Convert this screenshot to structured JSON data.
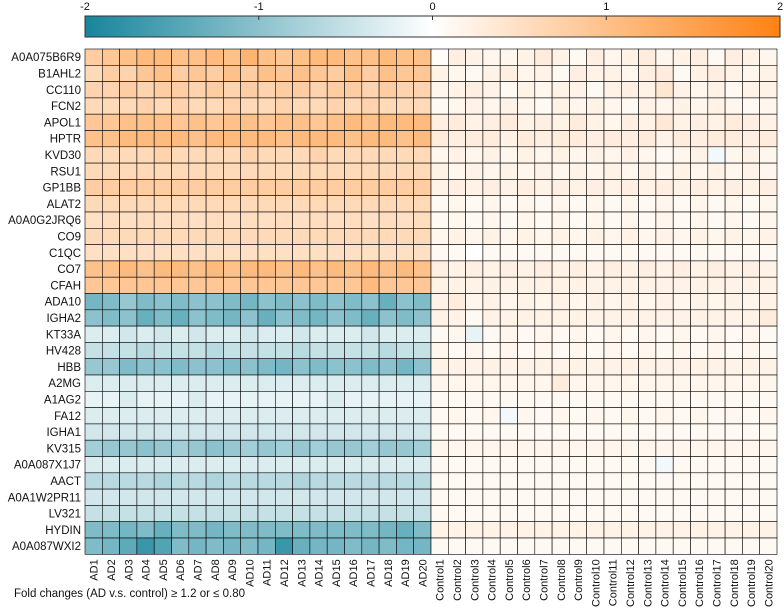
{
  "footnote": "Fold changes (AD v.s. control) ≥ 1.2 or ≤ 0.80",
  "chart_data": {
    "type": "heatmap",
    "colorbar": {
      "range": [
        -2,
        2
      ],
      "ticks": [
        -2,
        -1,
        0,
        1,
        2
      ],
      "tick_labels": [
        "-2",
        "-1",
        "0",
        "1",
        "2"
      ],
      "colors": {
        "low": "#17859b",
        "mid": "#ffffff",
        "high": "#ff8214"
      },
      "placement": "top"
    },
    "rows": [
      "A0A075B6R9",
      "B1AHL2",
      "CC110",
      "FCN2",
      "APOL1",
      "HPTR",
      "KVD30",
      "RSU1",
      "GP1BB",
      "ALAT2",
      "A0A0G2JRQ6",
      "CO9",
      "C1QC",
      "CO7",
      "CFAH",
      "ADA10",
      "IGHA2",
      "KT33A",
      "HV428",
      "HBB",
      "A2MG",
      "A1AG2",
      "FA12",
      "IGHA1",
      "KV315",
      "A0A087X1J7",
      "AACT",
      "A0A1W2PR11",
      "LV321",
      "HYDIN",
      "A0A087WXI2"
    ],
    "columns": [
      "AD1",
      "AD2",
      "AD3",
      "AD4",
      "AD5",
      "AD6",
      "AD7",
      "AD8",
      "AD9",
      "AD10",
      "AD11",
      "AD12",
      "AD13",
      "AD14",
      "AD15",
      "AD16",
      "AD17",
      "AD18",
      "AD19",
      "AD20",
      "Control1",
      "Control2",
      "Control3",
      "Control4",
      "Control5",
      "Control6",
      "Control7",
      "Control8",
      "Control9",
      "Control10",
      "Control11",
      "Control12",
      "Control13",
      "Control14",
      "Control15",
      "Control16",
      "Control17",
      "Control18",
      "Control19",
      "Control20"
    ],
    "values": [
      [
        0.8,
        0.9,
        1.0,
        1.1,
        1.1,
        1.0,
        1.0,
        1.1,
        1.0,
        1.2,
        1.0,
        0.9,
        1.0,
        1.1,
        1.1,
        1.0,
        1.0,
        1.1,
        1.0,
        1.0,
        0.05,
        0.25,
        0.2,
        0.15,
        0.15,
        0.2,
        0.3,
        0.2,
        0.1,
        0.25,
        0.15,
        0.2,
        0.3,
        0.15,
        0.2,
        0.25,
        0.1,
        0.25,
        0.2,
        0.15
      ],
      [
        0.6,
        0.8,
        0.7,
        0.9,
        1.0,
        0.8,
        0.9,
        0.8,
        1.0,
        0.8,
        1.0,
        0.9,
        1.0,
        0.9,
        0.8,
        1.0,
        0.8,
        1.0,
        0.9,
        0.9,
        0.2,
        0.15,
        0.1,
        0.2,
        0.25,
        0.15,
        0.2,
        0.1,
        0.25,
        0.2,
        0.2,
        0.15,
        0.25,
        0.3,
        0.1,
        0.2,
        0.25,
        0.2,
        0.15,
        0.2
      ],
      [
        0.7,
        0.7,
        0.8,
        0.7,
        0.8,
        0.8,
        0.7,
        0.8,
        0.7,
        0.8,
        0.7,
        0.8,
        0.8,
        0.7,
        0.8,
        0.8,
        0.7,
        0.8,
        0.7,
        0.7,
        0.15,
        0.2,
        0.25,
        0.2,
        0.1,
        0.2,
        0.15,
        0.2,
        0.2,
        0.1,
        0.2,
        0.25,
        0.2,
        0.4,
        0.2,
        0.15,
        0.2,
        0.1,
        0.2,
        0.2
      ],
      [
        0.6,
        0.6,
        0.6,
        0.7,
        0.6,
        0.7,
        0.6,
        0.6,
        0.7,
        0.6,
        0.6,
        0.7,
        0.6,
        0.6,
        0.7,
        0.6,
        0.7,
        0.6,
        0.6,
        0.6,
        0.1,
        0.15,
        0.2,
        0.15,
        0.2,
        0.15,
        0.1,
        0.2,
        0.15,
        0.2,
        0.15,
        0.1,
        0.2,
        0.15,
        0.2,
        0.15,
        0.2,
        0.15,
        0.1,
        0.15
      ],
      [
        0.9,
        0.9,
        1.0,
        1.0,
        1.0,
        0.9,
        1.0,
        0.9,
        1.0,
        1.0,
        0.9,
        1.0,
        1.0,
        0.9,
        1.0,
        1.1,
        1.0,
        1.1,
        1.1,
        1.1,
        0.25,
        0.3,
        0.2,
        0.25,
        0.3,
        0.2,
        0.25,
        0.2,
        0.3,
        0.2,
        0.15,
        0.25,
        0.2,
        0.35,
        0.2,
        0.25,
        0.2,
        0.3,
        0.25,
        0.2
      ],
      [
        1.0,
        1.0,
        1.1,
        1.1,
        1.1,
        1.1,
        1.0,
        1.1,
        1.1,
        1.1,
        1.1,
        1.0,
        1.1,
        1.1,
        1.1,
        1.0,
        1.1,
        1.1,
        1.0,
        1.1,
        0.3,
        0.25,
        0.3,
        0.3,
        0.2,
        0.3,
        0.25,
        0.3,
        0.3,
        0.25,
        0.3,
        0.25,
        0.3,
        0.2,
        0.3,
        0.25,
        0.3,
        0.3,
        0.25,
        0.3
      ],
      [
        0.6,
        0.6,
        0.6,
        0.6,
        0.7,
        0.6,
        0.6,
        0.6,
        0.6,
        0.7,
        0.6,
        0.6,
        0.6,
        0.7,
        0.6,
        0.6,
        0.6,
        0.6,
        0.6,
        0.6,
        0.15,
        0.2,
        0.15,
        0.2,
        0.15,
        0.2,
        0.15,
        0.2,
        0.15,
        0.2,
        0.15,
        0.2,
        0.15,
        0.1,
        0.15,
        0.2,
        -0.1,
        0.15,
        0.2,
        0.15
      ],
      [
        0.6,
        0.6,
        0.6,
        0.6,
        0.6,
        0.6,
        0.6,
        0.6,
        0.6,
        0.6,
        0.6,
        0.6,
        0.6,
        0.6,
        0.6,
        0.6,
        0.6,
        0.6,
        0.6,
        0.6,
        0.2,
        0.15,
        0.2,
        0.15,
        0.2,
        0.15,
        0.2,
        0.15,
        0.2,
        0.15,
        0.2,
        0.15,
        0.2,
        0.15,
        0.2,
        0.15,
        0.2,
        0.15,
        0.2,
        0.15
      ],
      [
        0.8,
        0.8,
        0.8,
        0.8,
        0.8,
        0.8,
        0.8,
        0.8,
        0.8,
        0.8,
        0.8,
        0.8,
        0.8,
        0.8,
        0.8,
        0.8,
        0.8,
        0.8,
        0.8,
        0.8,
        0.2,
        0.25,
        0.2,
        0.25,
        0.2,
        0.25,
        0.2,
        0.25,
        0.2,
        0.25,
        0.2,
        0.25,
        0.2,
        0.25,
        0.2,
        0.25,
        0.2,
        0.25,
        0.2,
        0.25
      ],
      [
        0.6,
        0.6,
        0.6,
        0.6,
        0.6,
        0.6,
        0.6,
        0.6,
        0.6,
        0.6,
        0.6,
        0.6,
        0.6,
        0.6,
        0.6,
        0.6,
        0.6,
        0.6,
        0.6,
        0.6,
        0.1,
        0.15,
        0.1,
        0.15,
        0.1,
        0.15,
        0.1,
        0.15,
        0.1,
        0.15,
        0.1,
        0.15,
        0.1,
        0.15,
        0.1,
        0.15,
        0.1,
        0.15,
        0.1,
        0.15
      ],
      [
        0.5,
        0.55,
        0.5,
        0.55,
        0.5,
        0.55,
        0.5,
        0.55,
        0.5,
        0.55,
        0.5,
        0.55,
        0.5,
        0.55,
        0.5,
        0.55,
        0.5,
        0.55,
        0.5,
        0.55,
        0.1,
        0.15,
        0.1,
        0.15,
        0.1,
        0.15,
        0.1,
        0.15,
        0.1,
        0.15,
        0.1,
        0.15,
        0.1,
        0.15,
        0.1,
        0.15,
        0.1,
        0.15,
        0.1,
        0.15
      ],
      [
        0.6,
        0.6,
        0.6,
        0.6,
        0.6,
        0.6,
        0.6,
        0.6,
        0.6,
        0.6,
        0.6,
        0.6,
        0.6,
        0.6,
        0.6,
        0.6,
        0.6,
        0.6,
        0.6,
        0.6,
        0.15,
        0.2,
        0.15,
        0.2,
        0.15,
        0.2,
        0.15,
        0.2,
        0.15,
        0.2,
        0.15,
        0.2,
        0.15,
        0.2,
        0.15,
        0.2,
        0.15,
        0.2,
        0.15,
        0.2
      ],
      [
        0.5,
        0.5,
        0.5,
        0.5,
        0.5,
        0.5,
        0.5,
        0.5,
        0.5,
        0.5,
        0.5,
        0.5,
        0.5,
        0.5,
        0.5,
        0.5,
        0.5,
        0.5,
        0.5,
        0.5,
        0.1,
        0.1,
        0.0,
        0.1,
        0.1,
        0.1,
        0.1,
        0.1,
        0.1,
        0.1,
        0.1,
        0.1,
        0.1,
        0.1,
        0.1,
        0.1,
        0.1,
        0.1,
        0.1,
        0.1
      ],
      [
        1.0,
        1.0,
        1.1,
        1.0,
        1.1,
        1.1,
        1.0,
        1.1,
        1.0,
        1.1,
        1.1,
        1.0,
        1.1,
        1.0,
        1.1,
        1.0,
        1.1,
        1.0,
        1.1,
        1.0,
        0.25,
        0.2,
        0.25,
        0.2,
        0.25,
        0.2,
        0.25,
        0.2,
        0.25,
        0.2,
        0.25,
        0.2,
        0.25,
        0.2,
        0.25,
        0.2,
        0.25,
        0.2,
        0.25,
        0.2
      ],
      [
        0.9,
        0.9,
        0.9,
        0.9,
        0.9,
        0.9,
        0.9,
        0.9,
        0.9,
        0.9,
        0.9,
        0.9,
        0.9,
        0.9,
        0.9,
        0.9,
        1.1,
        0.9,
        0.9,
        0.9,
        0.2,
        0.2,
        0.2,
        0.2,
        0.2,
        0.2,
        0.2,
        0.2,
        0.2,
        0.2,
        0.2,
        0.2,
        0.2,
        0.2,
        0.2,
        0.2,
        0.2,
        0.2,
        0.2,
        0.2
      ],
      [
        -1.2,
        -1.1,
        -0.9,
        -1.1,
        -1.0,
        -1.1,
        -1.0,
        -1.0,
        -1.1,
        -1.2,
        -1.0,
        -1.1,
        -1.0,
        -1.1,
        -1.0,
        -1.1,
        -1.0,
        -1.3,
        -1.0,
        -1.1,
        0.2,
        0.3,
        0.15,
        0.2,
        0.15,
        0.2,
        0.15,
        0.2,
        0.15,
        0.2,
        0.15,
        0.2,
        0.15,
        0.2,
        0.15,
        0.2,
        0.15,
        0.2,
        0.15,
        0.2
      ],
      [
        -1.0,
        -1.1,
        -1.0,
        -1.3,
        -1.1,
        -1.3,
        -1.0,
        -1.1,
        -1.2,
        -1.0,
        -1.3,
        -1.0,
        -1.1,
        -1.2,
        -1.0,
        -1.1,
        -1.3,
        -1.0,
        -1.1,
        -1.0,
        0.2,
        0.2,
        0.1,
        0.2,
        0.2,
        0.2,
        0.2,
        0.2,
        0.2,
        0.2,
        0.2,
        0.2,
        0.2,
        0.2,
        0.2,
        0.2,
        0.2,
        0.2,
        0.2,
        0.3
      ],
      [
        -0.3,
        -0.3,
        -0.4,
        -0.3,
        -0.4,
        -0.3,
        -0.4,
        -0.3,
        -0.3,
        -0.4,
        -0.3,
        -0.3,
        -0.4,
        -0.3,
        -0.3,
        -0.3,
        -0.4,
        -0.3,
        -0.3,
        -0.3,
        0.1,
        0.15,
        -0.2,
        0.1,
        0.15,
        0.1,
        0.15,
        0.1,
        0.15,
        0.1,
        0.15,
        0.1,
        0.15,
        0.1,
        0.15,
        0.1,
        0.15,
        0.1,
        0.15,
        0.1
      ],
      [
        -0.5,
        -0.5,
        -0.5,
        -0.6,
        -0.5,
        -0.5,
        -0.5,
        -0.6,
        -0.5,
        -0.5,
        -0.5,
        -0.5,
        -0.6,
        -0.5,
        -0.5,
        -0.5,
        -0.5,
        -0.6,
        -0.5,
        -0.5,
        0.15,
        0.1,
        0.15,
        0.1,
        0.15,
        0.1,
        0.15,
        0.1,
        0.15,
        0.1,
        0.15,
        0.1,
        0.15,
        0.1,
        0.15,
        0.1,
        0.15,
        0.1,
        0.15,
        0.1
      ],
      [
        -0.9,
        -0.9,
        -1.1,
        -1.0,
        -1.0,
        -1.1,
        -1.0,
        -1.0,
        -1.1,
        -1.0,
        -1.1,
        -1.2,
        -1.0,
        -1.1,
        -1.0,
        -1.0,
        -1.1,
        -1.0,
        -1.2,
        -1.0,
        0.2,
        0.2,
        0.2,
        0.2,
        0.2,
        0.2,
        0.2,
        0.2,
        0.2,
        0.2,
        0.2,
        0.2,
        0.2,
        0.2,
        0.2,
        0.2,
        0.2,
        0.2,
        0.2,
        0.2
      ],
      [
        -0.3,
        -0.3,
        -0.3,
        -0.3,
        -0.3,
        -0.3,
        -0.3,
        -0.3,
        -0.3,
        -0.3,
        -0.3,
        -0.3,
        -0.3,
        -0.3,
        -0.3,
        -0.3,
        -0.3,
        -0.3,
        -0.3,
        -0.3,
        0.15,
        0.15,
        0.15,
        0.15,
        0.15,
        0.15,
        0.15,
        0.3,
        0.15,
        0.15,
        0.15,
        0.15,
        0.15,
        0.15,
        0.15,
        0.15,
        0.15,
        0.15,
        0.15,
        0.15
      ],
      [
        -0.2,
        -0.2,
        -0.3,
        -0.2,
        -0.2,
        -0.2,
        -0.3,
        -0.2,
        -0.2,
        -0.2,
        -0.2,
        -0.2,
        -0.2,
        -0.2,
        -0.3,
        -0.2,
        -0.2,
        -0.2,
        -0.2,
        -0.2,
        0.1,
        0.1,
        0.1,
        0.1,
        0.1,
        0.1,
        0.1,
        0.1,
        0.1,
        0.1,
        0.1,
        0.1,
        0.1,
        0.1,
        0.1,
        0.1,
        0.1,
        0.1,
        0.1,
        0.1
      ],
      [
        -0.3,
        -0.3,
        -0.3,
        -0.3,
        -0.3,
        -0.3,
        -0.3,
        -0.3,
        -0.3,
        -0.3,
        -0.3,
        -0.3,
        -0.3,
        -0.3,
        -0.3,
        -0.3,
        -0.3,
        -0.3,
        -0.3,
        -0.3,
        0.1,
        0.15,
        0.1,
        0.15,
        -0.1,
        0.15,
        0.1,
        0.15,
        0.1,
        0.15,
        0.1,
        0.15,
        0.1,
        0.15,
        0.1,
        0.15,
        0.1,
        0.15,
        0.1,
        0.15
      ],
      [
        -0.4,
        -0.4,
        -0.4,
        -0.4,
        -0.4,
        -0.4,
        -0.4,
        -0.4,
        -0.4,
        -0.4,
        -0.4,
        -0.4,
        -0.4,
        -0.4,
        -0.4,
        -0.4,
        -0.4,
        -0.4,
        -0.4,
        -0.4,
        0.1,
        0.1,
        0.1,
        0.1,
        0.1,
        0.1,
        0.1,
        0.1,
        0.1,
        0.1,
        0.1,
        0.1,
        0.1,
        0.1,
        0.1,
        0.1,
        0.1,
        0.1,
        0.1,
        0.1
      ],
      [
        -0.8,
        -0.9,
        -0.9,
        -1.0,
        -0.9,
        -0.8,
        -0.9,
        -1.0,
        -0.9,
        -0.8,
        -0.9,
        -0.8,
        -0.9,
        -0.8,
        -0.9,
        -0.9,
        -0.8,
        -0.9,
        -0.9,
        -0.8,
        0.15,
        0.15,
        0.15,
        0.15,
        0.15,
        0.15,
        0.15,
        0.15,
        0.15,
        0.15,
        0.15,
        0.15,
        0.15,
        0.15,
        0.15,
        0.15,
        0.15,
        0.15,
        0.15,
        0.15
      ],
      [
        -0.3,
        -0.3,
        -0.3,
        -0.3,
        -0.3,
        -0.3,
        -0.3,
        -0.3,
        -0.3,
        -0.3,
        -0.3,
        -0.3,
        -0.3,
        -0.3,
        -0.3,
        -0.3,
        -0.3,
        -0.3,
        -0.3,
        -0.3,
        0.1,
        0.1,
        0.1,
        0.1,
        0.1,
        0.1,
        0.1,
        0.1,
        0.1,
        0.1,
        0.1,
        0.1,
        0.1,
        -0.1,
        0.1,
        0.1,
        0.1,
        0.1,
        0.1,
        0.1
      ],
      [
        -0.6,
        -0.6,
        -0.6,
        -0.6,
        -0.7,
        -0.6,
        -0.6,
        -0.7,
        -0.6,
        -0.6,
        -0.6,
        -0.6,
        -0.7,
        -0.6,
        -0.6,
        -0.6,
        -0.6,
        -0.6,
        -0.6,
        -0.6,
        0.1,
        0.1,
        0.1,
        0.1,
        0.1,
        0.1,
        0.1,
        0.1,
        0.1,
        0.1,
        0.1,
        0.1,
        0.1,
        0.1,
        0.1,
        0.1,
        0.1,
        0.1,
        0.1,
        0.1
      ],
      [
        -0.4,
        -0.4,
        -0.4,
        -0.4,
        -0.4,
        -0.4,
        -0.4,
        -0.4,
        -0.4,
        -0.4,
        -0.4,
        -0.4,
        -0.4,
        -0.4,
        -0.4,
        -0.4,
        -0.4,
        -0.4,
        -0.4,
        -0.4,
        0.1,
        0.1,
        0.1,
        0.1,
        0.1,
        0.1,
        0.1,
        0.1,
        0.1,
        0.1,
        0.1,
        0.1,
        0.1,
        0.1,
        0.1,
        0.1,
        0.1,
        0.1,
        0.1,
        0.1
      ],
      [
        -0.5,
        -0.5,
        -0.5,
        -0.5,
        -0.5,
        -0.5,
        -0.5,
        -0.5,
        -0.5,
        -0.5,
        -0.5,
        -0.5,
        -0.5,
        -0.5,
        -0.5,
        -0.5,
        -0.5,
        -0.5,
        -0.5,
        -0.5,
        0.1,
        0.1,
        0.1,
        0.1,
        0.1,
        0.1,
        0.1,
        0.1,
        0.1,
        0.1,
        0.1,
        0.1,
        0.1,
        0.1,
        0.1,
        0.1,
        0.1,
        0.1,
        0.1,
        0.1
      ],
      [
        -1.1,
        -1.1,
        -1.2,
        -1.1,
        -1.3,
        -1.1,
        -1.1,
        -1.2,
        -1.1,
        -1.1,
        -1.1,
        -1.1,
        -1.1,
        -1.1,
        -1.1,
        -1.1,
        -1.1,
        -1.2,
        -1.3,
        -1.1,
        0.2,
        0.2,
        0.2,
        0.2,
        0.2,
        0.2,
        0.2,
        0.2,
        0.2,
        0.2,
        0.2,
        0.2,
        0.2,
        0.2,
        0.2,
        0.2,
        0.2,
        0.2,
        0.2,
        0.2
      ],
      [
        -1.1,
        -1.2,
        -1.4,
        -1.7,
        -1.5,
        -1.1,
        -1.2,
        -1.1,
        -1.2,
        -1.1,
        -1.2,
        -1.7,
        -1.3,
        -1.2,
        -1.2,
        -1.1,
        -1.2,
        -1.1,
        -1.2,
        -1.2,
        0.1,
        0.1,
        0.1,
        0.1,
        0.1,
        0.1,
        0.1,
        0.1,
        0.1,
        0.1,
        0.1,
        0.1,
        0.1,
        0.1,
        0.1,
        0.1,
        0.1,
        0.1,
        0.1,
        0.1
      ]
    ]
  }
}
